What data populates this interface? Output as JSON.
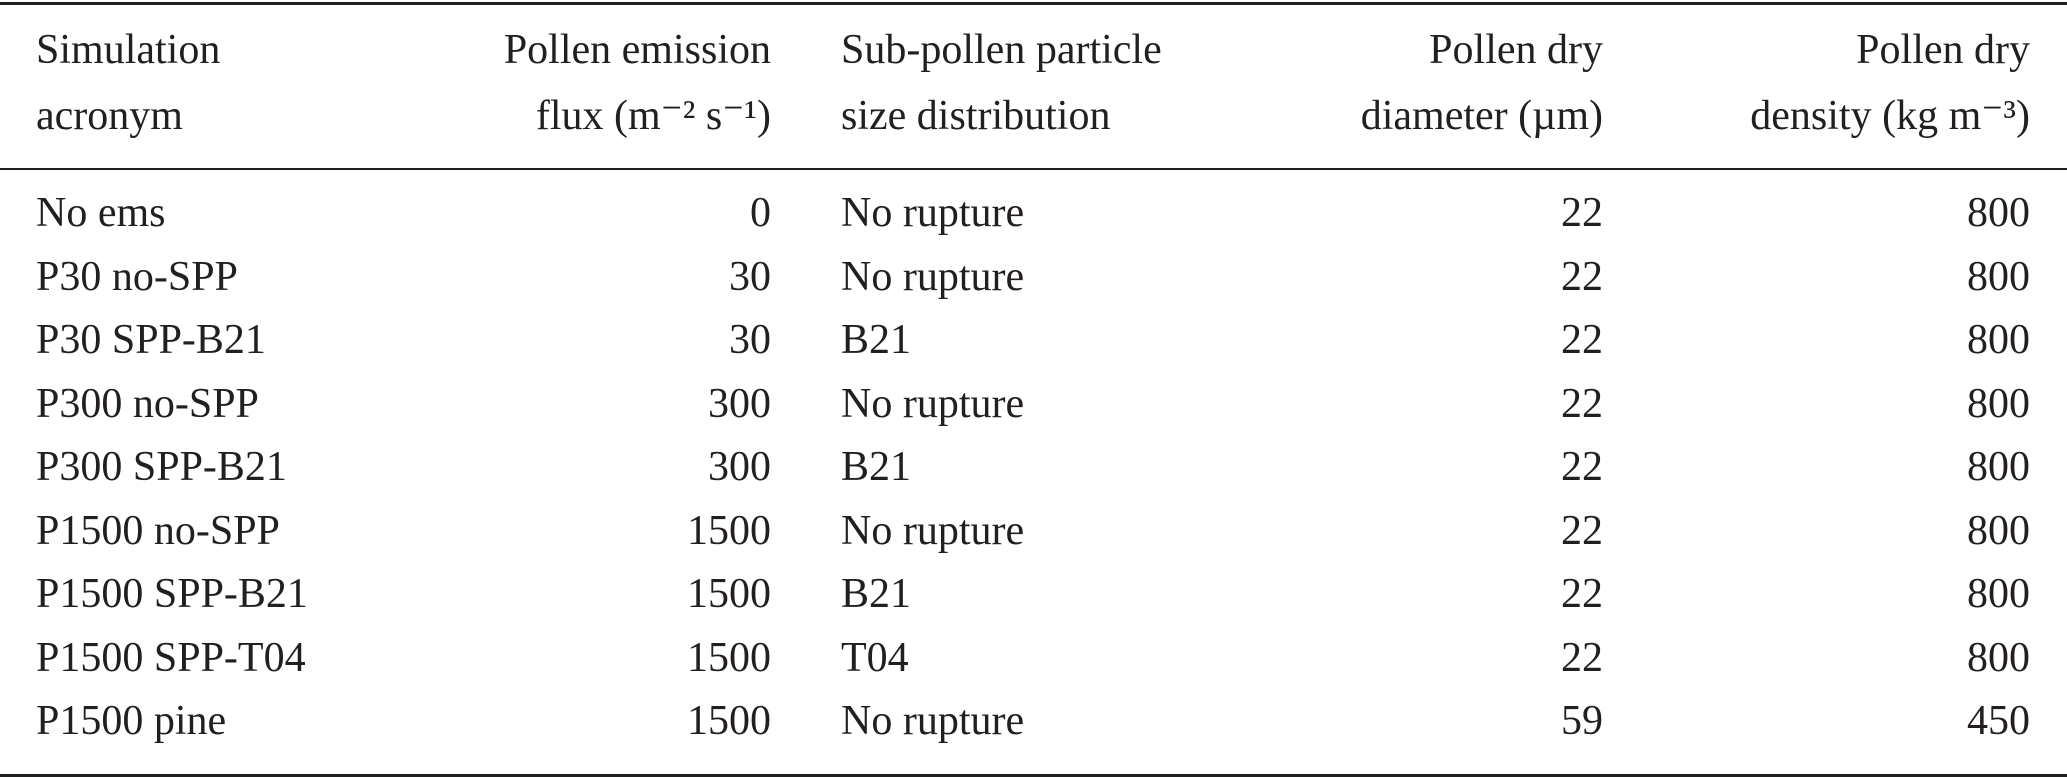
{
  "table": {
    "header": [
      [
        "Simulation",
        "acronym"
      ],
      [
        "Pollen emission",
        "flux (m⁻² s⁻¹)"
      ],
      [
        "Sub-pollen particle",
        "size distribution"
      ],
      [
        "Pollen dry",
        "diameter (µm)"
      ],
      [
        "Pollen dry",
        "density (kg m⁻³)"
      ]
    ],
    "rows": [
      [
        "No ems",
        0,
        "No rupture",
        22,
        800
      ],
      [
        "P30 no-SPP",
        30,
        "No rupture",
        22,
        800
      ],
      [
        "P30 SPP-B21",
        30,
        "B21",
        22,
        800
      ],
      [
        "P300 no-SPP",
        300,
        "No rupture",
        22,
        800
      ],
      [
        "P300 SPP-B21",
        300,
        "B21",
        22,
        800
      ],
      [
        "P1500 no-SPP",
        1500,
        "No rupture",
        22,
        800
      ],
      [
        "P1500 SPP-B21",
        1500,
        "B21",
        22,
        800
      ],
      [
        "P1500 SPP-T04",
        1500,
        "T04",
        22,
        800
      ],
      [
        "P1500 pine",
        1500,
        "No rupture",
        59,
        450
      ]
    ]
  }
}
